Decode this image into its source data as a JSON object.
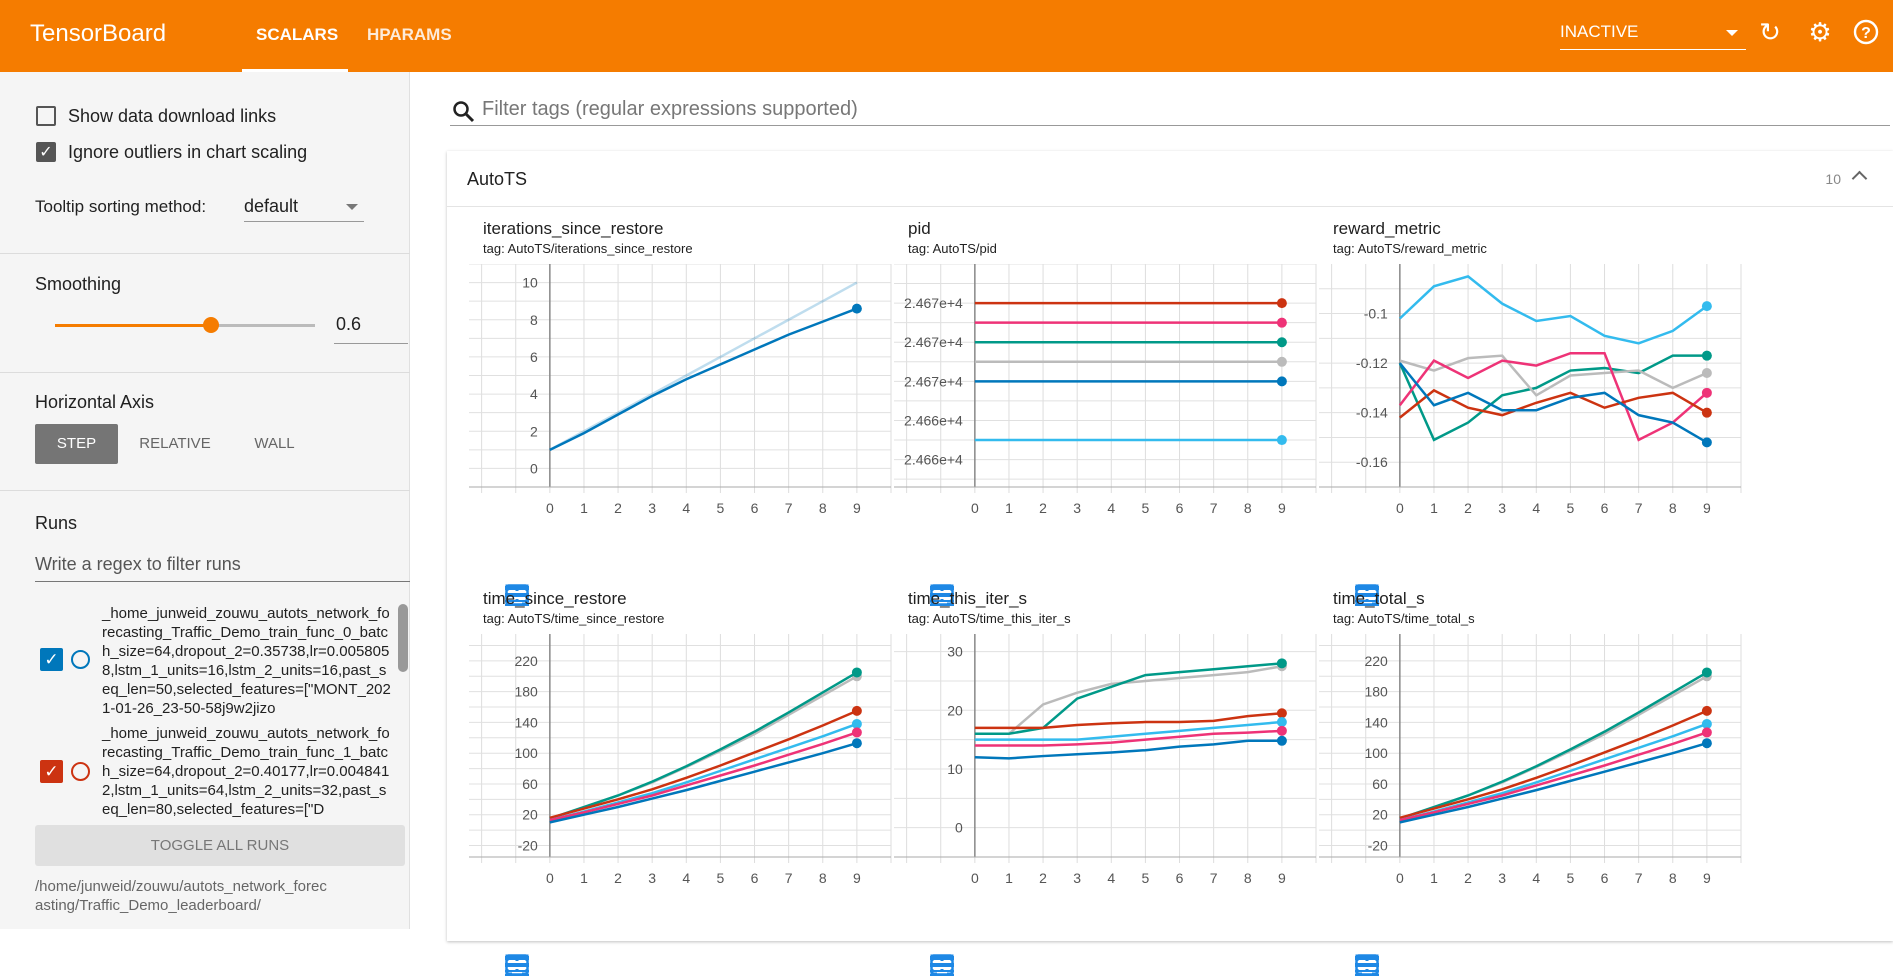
{
  "header": {
    "brand": "TensorBoard",
    "tabs": [
      {
        "label": "SCALARS",
        "active": true
      },
      {
        "label": "HPARAMS",
        "active": false
      }
    ],
    "run_state": "INACTIVE",
    "icons": [
      "refresh-icon",
      "settings-icon",
      "help-icon"
    ],
    "color": "#f57c00"
  },
  "sidebar": {
    "show_download": "Show data download links",
    "show_download_checked": false,
    "ignore_outliers": "Ignore outliers in chart scaling",
    "ignore_outliers_checked": true,
    "tooltip_label": "Tooltip sorting method:",
    "tooltip_value": "default",
    "smoothing_label": "Smoothing",
    "smoothing_value": "0.6",
    "smoothing": 0.6,
    "haxis_label": "Horizontal Axis",
    "haxis_options": [
      "STEP",
      "RELATIVE",
      "WALL"
    ],
    "haxis_selected": "STEP",
    "runs_label": "Runs",
    "runs_filter_placeholder": "Write a regex to filter runs",
    "runs": [
      {
        "name": "_home_junweid_zouwu_autots_network_forecasting_Traffic_Demo_train_func_0_batch_size=64,dropout_2=0.35738,lr=0.0058058,lstm_1_units=16,lstm_2_units=16,past_seq_len=50,selected_features=[\"MONT_2021-01-26_23-50-58j9w2jizo",
        "color": "#0077bb",
        "checked": true
      },
      {
        "name": "_home_junweid_zouwu_autots_network_forecasting_Traffic_Demo_train_func_1_batch_size=64,dropout_2=0.40177,lr=0.0048412,lstm_1_units=64,lstm_2_units=32,past_seq_len=80,selected_features=[\"D",
        "color": "#cc3311",
        "checked": true
      }
    ],
    "toggle_all": "TOGGLE ALL RUNS",
    "logdir": "/home/junweid/zouwu/autots_network_forecasting/Traffic_Demo_leaderboard/"
  },
  "main": {
    "filter_placeholder": "Filter tags (regular expressions supported)",
    "group": "AutoTS",
    "group_count": "10"
  },
  "run_colors": {
    "blue": "#0077bb",
    "red": "#cc3311",
    "cyan": "#33bbee",
    "pink": "#ee3377",
    "teal": "#009988",
    "grey": "#bbbbbb"
  },
  "chart_data": [
    {
      "type": "line",
      "title": "iterations_since_restore",
      "tag": "tag: AutoTS/iterations_since_restore",
      "x": [
        0,
        1,
        2,
        3,
        4,
        5,
        6,
        7,
        8,
        9
      ],
      "xlim": [
        0,
        9
      ],
      "ylim": [
        -1,
        11
      ],
      "yticks": [
        0,
        2,
        4,
        6,
        8,
        10
      ],
      "ytick_labels": [
        "0",
        "2",
        "4",
        "6",
        "8",
        "10"
      ],
      "series": [
        {
          "run": "blue",
          "values": [
            1,
            1.9,
            2.9,
            3.9,
            4.8,
            5.6,
            6.4,
            7.2,
            7.9,
            8.6
          ],
          "raw": [
            1,
            2,
            3,
            4,
            5,
            6,
            7,
            8,
            9,
            10
          ]
        }
      ]
    },
    {
      "type": "line",
      "title": "pid",
      "tag": "tag: AutoTS/pid",
      "x": [
        0,
        1,
        2,
        3,
        4,
        5,
        6,
        7,
        8,
        9
      ],
      "xlim": [
        0,
        9
      ],
      "ylim": [
        24662.3,
        24668
      ],
      "yticks": [
        24667,
        24666,
        24665,
        24664,
        24663
      ],
      "ytick_labels": [
        "2.467e+4",
        "2.467e+4",
        "2.467e+4",
        "2.466e+4",
        "2.466e+4"
      ],
      "series": [
        {
          "run": "red",
          "values": [
            24667,
            24667,
            24667,
            24667,
            24667,
            24667,
            24667,
            24667,
            24667,
            24667
          ]
        },
        {
          "run": "pink",
          "values": [
            24666.5,
            24666.5,
            24666.5,
            24666.5,
            24666.5,
            24666.5,
            24666.5,
            24666.5,
            24666.5,
            24666.5
          ]
        },
        {
          "run": "teal",
          "values": [
            24666,
            24666,
            24666,
            24666,
            24666,
            24666,
            24666,
            24666,
            24666,
            24666
          ]
        },
        {
          "run": "grey",
          "values": [
            24665.5,
            24665.5,
            24665.5,
            24665.5,
            24665.5,
            24665.5,
            24665.5,
            24665.5,
            24665.5,
            24665.5
          ]
        },
        {
          "run": "blue",
          "values": [
            24665,
            24665,
            24665,
            24665,
            24665,
            24665,
            24665,
            24665,
            24665,
            24665
          ]
        },
        {
          "run": "cyan",
          "values": [
            24663.5,
            24663.5,
            24663.5,
            24663.5,
            24663.5,
            24663.5,
            24663.5,
            24663.5,
            24663.5,
            24663.5
          ]
        }
      ]
    },
    {
      "type": "line",
      "title": "reward_metric",
      "tag": "tag: AutoTS/reward_metric",
      "x": [
        0,
        1,
        2,
        3,
        4,
        5,
        6,
        7,
        8,
        9
      ],
      "xlim": [
        0,
        9
      ],
      "ylim": [
        -0.17,
        -0.08
      ],
      "yticks": [
        -0.1,
        -0.12,
        -0.14,
        -0.16
      ],
      "ytick_labels": [
        "-0.1",
        "-0.12",
        "-0.14",
        "-0.16"
      ],
      "series": [
        {
          "run": "cyan",
          "values": [
            -0.102,
            -0.089,
            -0.085,
            -0.096,
            -0.103,
            -0.101,
            -0.109,
            -0.112,
            -0.107,
            -0.097
          ]
        },
        {
          "run": "teal",
          "values": [
            -0.12,
            -0.151,
            -0.144,
            -0.133,
            -0.13,
            -0.123,
            -0.122,
            -0.124,
            -0.117,
            -0.117
          ]
        },
        {
          "run": "grey",
          "values": [
            -0.119,
            -0.123,
            -0.118,
            -0.117,
            -0.133,
            -0.125,
            -0.124,
            -0.123,
            -0.13,
            -0.124
          ]
        },
        {
          "run": "pink",
          "values": [
            -0.137,
            -0.119,
            -0.126,
            -0.119,
            -0.121,
            -0.116,
            -0.116,
            -0.151,
            -0.144,
            -0.132
          ]
        },
        {
          "run": "red",
          "values": [
            -0.142,
            -0.131,
            -0.138,
            -0.141,
            -0.136,
            -0.132,
            -0.138,
            -0.134,
            -0.132,
            -0.14
          ]
        },
        {
          "run": "blue",
          "values": [
            -0.12,
            -0.137,
            -0.132,
            -0.139,
            -0.139,
            -0.134,
            -0.132,
            -0.141,
            -0.144,
            -0.152
          ]
        }
      ]
    },
    {
      "type": "line",
      "title": "time_since_restore",
      "tag": "tag: AutoTS/time_since_restore",
      "x": [
        0,
        1,
        2,
        3,
        4,
        5,
        6,
        7,
        8,
        9
      ],
      "xlim": [
        0,
        9
      ],
      "ylim": [
        -35,
        255
      ],
      "yticks": [
        -20,
        20,
        60,
        100,
        140,
        180,
        220
      ],
      "ytick_labels": [
        "-20",
        "20",
        "60",
        "100",
        "140",
        "180",
        "220"
      ],
      "series": [
        {
          "run": "grey",
          "values": [
            15,
            30,
            45,
            62,
            82,
            103,
            125,
            150,
            175,
            200
          ]
        },
        {
          "run": "teal",
          "values": [
            15,
            30,
            45,
            63,
            83,
            105,
            128,
            153,
            179,
            205
          ]
        },
        {
          "run": "red",
          "values": [
            16,
            28,
            40,
            53,
            68,
            84,
            101,
            118,
            136,
            155
          ]
        },
        {
          "run": "cyan",
          "values": [
            13,
            24,
            36,
            48,
            62,
            77,
            92,
            107,
            122,
            138
          ]
        },
        {
          "run": "pink",
          "values": [
            13,
            23,
            34,
            45,
            58,
            71,
            84,
            98,
            112,
            127
          ]
        },
        {
          "run": "blue",
          "values": [
            10,
            20,
            30,
            41,
            52,
            64,
            76,
            88,
            100,
            113
          ]
        }
      ]
    },
    {
      "type": "line",
      "title": "time_this_iter_s",
      "tag": "tag: AutoTS/time_this_iter_s",
      "x": [
        0,
        1,
        2,
        3,
        4,
        5,
        6,
        7,
        8,
        9
      ],
      "xlim": [
        0,
        9
      ],
      "ylim": [
        -5,
        33
      ],
      "yticks": [
        0,
        10,
        20,
        30
      ],
      "ytick_labels": [
        "0",
        "10",
        "20",
        "30"
      ],
      "series": [
        {
          "run": "grey",
          "values": [
            16,
            16,
            21,
            23,
            24.5,
            25,
            25.5,
            26,
            26.5,
            27.5
          ]
        },
        {
          "run": "teal",
          "values": [
            16,
            16,
            17,
            22,
            24,
            26,
            26.5,
            27,
            27.5,
            28
          ]
        },
        {
          "run": "red",
          "values": [
            17,
            17,
            17,
            17.5,
            17.8,
            18,
            18,
            18.2,
            19,
            19.5
          ]
        },
        {
          "run": "cyan",
          "values": [
            15,
            15,
            15,
            15,
            15.5,
            16,
            16.5,
            17,
            17.5,
            18
          ]
        },
        {
          "run": "pink",
          "values": [
            14,
            14,
            14,
            14.2,
            14.5,
            15,
            15.5,
            16,
            16.2,
            16.5
          ]
        },
        {
          "run": "blue",
          "values": [
            12,
            11.8,
            12.2,
            12.5,
            12.8,
            13.2,
            13.8,
            14.2,
            14.8,
            14.8
          ]
        }
      ]
    },
    {
      "type": "line",
      "title": "time_total_s",
      "tag": "tag: AutoTS/time_total_s",
      "x": [
        0,
        1,
        2,
        3,
        4,
        5,
        6,
        7,
        8,
        9
      ],
      "xlim": [
        0,
        9
      ],
      "ylim": [
        -35,
        255
      ],
      "yticks": [
        -20,
        20,
        60,
        100,
        140,
        180,
        220
      ],
      "ytick_labels": [
        "-20",
        "20",
        "60",
        "100",
        "140",
        "180",
        "220"
      ],
      "series": [
        {
          "run": "grey",
          "values": [
            15,
            30,
            45,
            62,
            82,
            103,
            125,
            150,
            175,
            200
          ]
        },
        {
          "run": "teal",
          "values": [
            15,
            30,
            45,
            63,
            83,
            105,
            128,
            153,
            179,
            205
          ]
        },
        {
          "run": "red",
          "values": [
            16,
            28,
            40,
            53,
            68,
            84,
            101,
            118,
            136,
            155
          ]
        },
        {
          "run": "cyan",
          "values": [
            13,
            24,
            36,
            48,
            62,
            77,
            92,
            107,
            122,
            138
          ]
        },
        {
          "run": "pink",
          "values": [
            13,
            23,
            34,
            45,
            58,
            71,
            84,
            98,
            112,
            127
          ]
        },
        {
          "run": "blue",
          "values": [
            10,
            20,
            30,
            41,
            52,
            64,
            76,
            88,
            100,
            113
          ]
        }
      ]
    }
  ]
}
